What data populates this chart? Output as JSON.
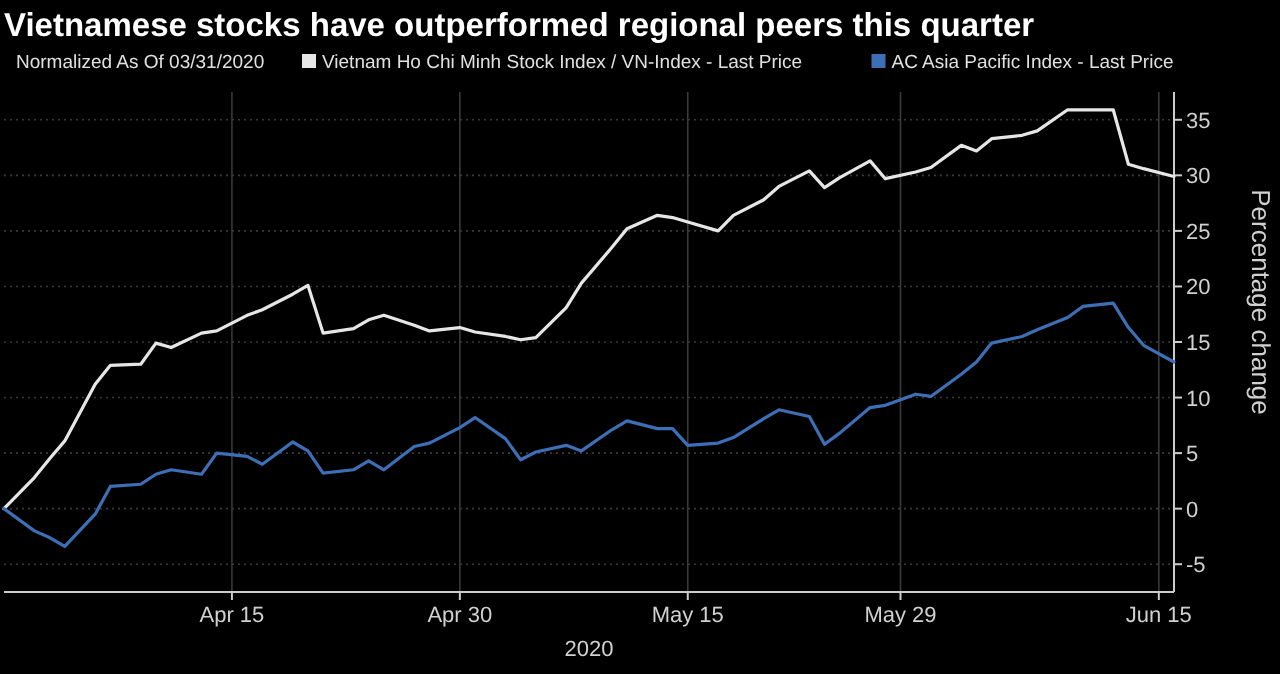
{
  "chart_data": {
    "type": "line",
    "title": "Vietnamese stocks have outperformed regional peers this quarter",
    "subtitle": "Normalized As Of 03/31/2020",
    "xlabel": "2020",
    "ylabel": "Percentage change",
    "x": [
      "2020-03-31",
      "2020-04-02",
      "2020-04-03",
      "2020-04-04",
      "2020-04-06",
      "2020-04-07",
      "2020-04-09",
      "2020-04-10",
      "2020-04-11",
      "2020-04-13",
      "2020-04-14",
      "2020-04-16",
      "2020-04-17",
      "2020-04-19",
      "2020-04-20",
      "2020-04-21",
      "2020-04-23",
      "2020-04-24",
      "2020-04-25",
      "2020-04-27",
      "2020-04-28",
      "2020-04-30",
      "2020-05-01",
      "2020-05-03",
      "2020-05-04",
      "2020-05-05",
      "2020-05-07",
      "2020-05-08",
      "2020-05-10",
      "2020-05-11",
      "2020-05-13",
      "2020-05-14",
      "2020-05-15",
      "2020-05-17",
      "2020-05-18",
      "2020-05-20",
      "2020-05-21",
      "2020-05-23",
      "2020-05-24",
      "2020-05-25",
      "2020-05-27",
      "2020-05-28",
      "2020-05-30",
      "2020-05-31",
      "2020-06-02",
      "2020-06-03",
      "2020-06-04",
      "2020-06-06",
      "2020-06-07",
      "2020-06-09",
      "2020-06-10",
      "2020-06-12",
      "2020-06-13",
      "2020-06-14",
      "2020-06-16"
    ],
    "series": [
      {
        "name": "Vietnam Ho Chi Minh Stock Index / VN-Index - Last Price",
        "color": "#e6e6e6",
        "values": [
          0,
          2.8,
          4.5,
          6.1,
          11.2,
          12.9,
          13.0,
          14.9,
          14.5,
          15.8,
          16.0,
          17.4,
          17.9,
          19.3,
          20.1,
          15.8,
          16.2,
          17.0,
          17.4,
          16.5,
          16.0,
          16.3,
          15.9,
          15.5,
          15.2,
          15.4,
          18.1,
          20.3,
          23.5,
          25.2,
          26.4,
          26.2,
          25.8,
          25.0,
          26.4,
          27.8,
          29.0,
          30.4,
          28.9,
          29.8,
          31.3,
          29.7,
          30.3,
          30.7,
          32.7,
          32.2,
          33.3,
          33.6,
          34.0,
          35.9,
          35.9,
          35.9,
          31.0,
          30.6,
          29.9
        ]
      },
      {
        "name": "AC Asia Pacific Index - Last Price",
        "color": "#3d6fb6",
        "values": [
          0,
          -2.0,
          -2.6,
          -3.4,
          -0.5,
          2.0,
          2.2,
          3.1,
          3.5,
          3.1,
          5.0,
          4.7,
          4.0,
          6.0,
          5.2,
          3.2,
          3.5,
          4.3,
          3.5,
          5.6,
          5.9,
          7.3,
          8.2,
          6.3,
          4.4,
          5.1,
          5.7,
          5.2,
          7.1,
          7.9,
          7.2,
          7.2,
          5.7,
          5.9,
          6.4,
          8.1,
          8.9,
          8.3,
          5.8,
          6.8,
          9.1,
          9.3,
          10.3,
          10.1,
          12.1,
          13.2,
          14.9,
          15.5,
          16.1,
          17.2,
          18.2,
          18.5,
          16.3,
          14.7,
          13.2
        ]
      }
    ],
    "xlim": [
      "2020-03-31",
      "2020-06-16"
    ],
    "xticks": [
      {
        "value": "2020-04-15",
        "label": "Apr 15"
      },
      {
        "value": "2020-04-30",
        "label": "Apr 30"
      },
      {
        "value": "2020-05-15",
        "label": "May 15"
      },
      {
        "value": "2020-05-29",
        "label": "May 29"
      },
      {
        "value": "2020-06-15",
        "label": "Jun 15"
      }
    ],
    "ylim": [
      -7.5,
      37.5
    ],
    "yticks": [
      -5,
      0,
      5,
      10,
      15,
      20,
      25,
      30,
      35
    ],
    "grid": true,
    "legend": "top",
    "marker": "none",
    "line_style": "solid"
  }
}
